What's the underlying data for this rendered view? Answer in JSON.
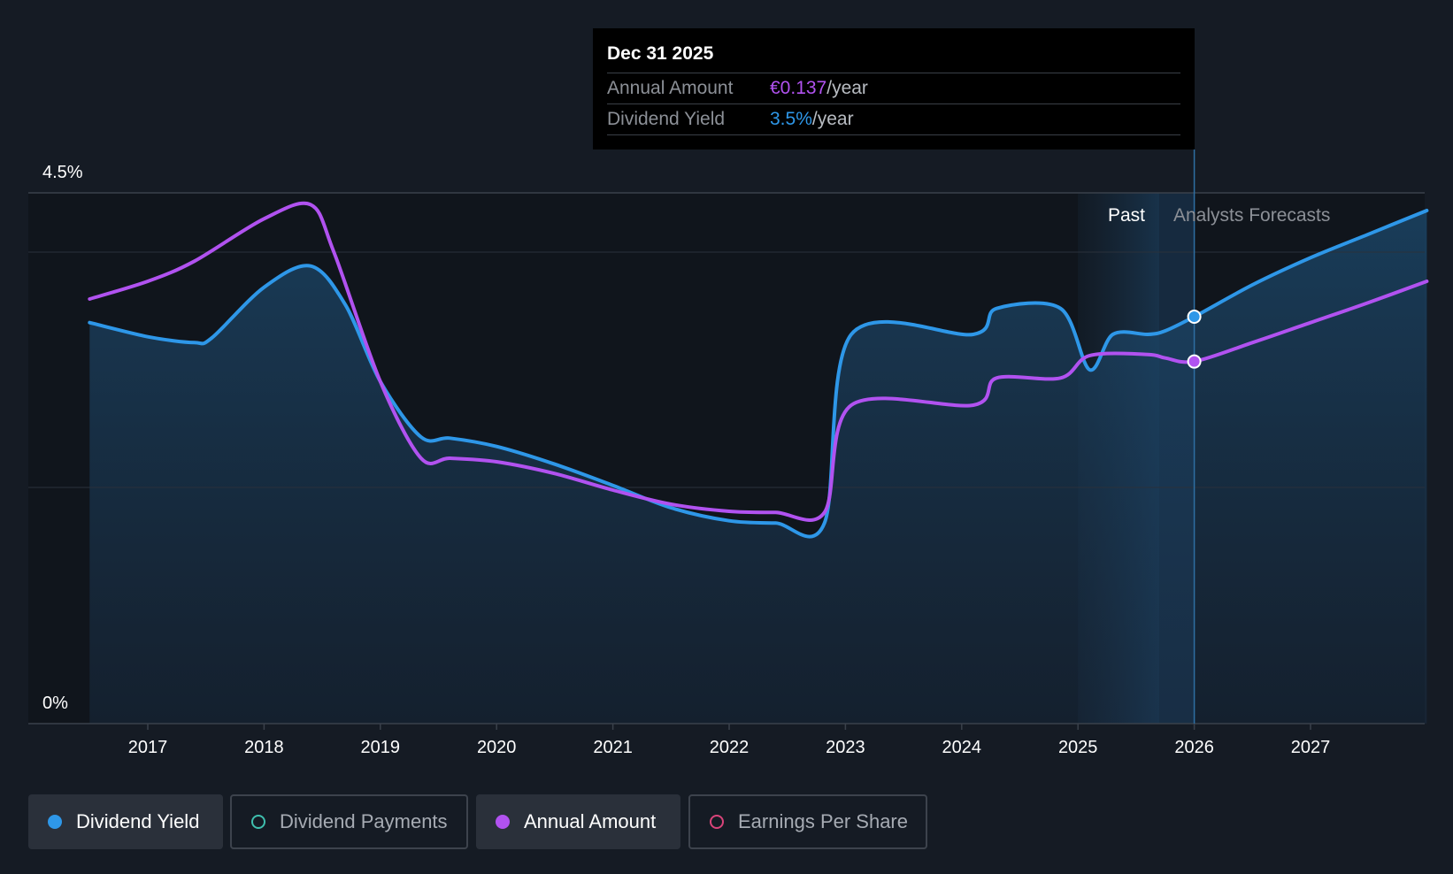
{
  "chart_data": {
    "type": "line",
    "y_axis": {
      "top_label": "4.5%",
      "bottom_label": "0%",
      "ylim": [
        0,
        4.5
      ]
    },
    "x_tick_labels": [
      "2017",
      "2018",
      "2019",
      "2020",
      "2021",
      "2022",
      "2023",
      "2024",
      "2025",
      "2026",
      "2027"
    ],
    "regions": {
      "past_label": "Past",
      "forecast_label": "Analysts Forecasts"
    },
    "series": [
      {
        "name": "Dividend Yield",
        "color": "#2e97e8",
        "points": [
          [
            2016.5,
            3.4
          ],
          [
            2017.0,
            3.28
          ],
          [
            2017.4,
            3.23
          ],
          [
            2017.55,
            3.27
          ],
          [
            2018.0,
            3.7
          ],
          [
            2018.4,
            3.88
          ],
          [
            2018.7,
            3.55
          ],
          [
            2019.0,
            2.9
          ],
          [
            2019.35,
            2.43
          ],
          [
            2019.6,
            2.42
          ],
          [
            2020.0,
            2.35
          ],
          [
            2020.5,
            2.2
          ],
          [
            2021.0,
            2.02
          ],
          [
            2021.5,
            1.83
          ],
          [
            2022.0,
            1.72
          ],
          [
            2022.4,
            1.7
          ],
          [
            2022.82,
            1.7
          ],
          [
            2023.05,
            3.3
          ],
          [
            2024.1,
            3.3
          ],
          [
            2024.3,
            3.52
          ],
          [
            2024.85,
            3.52
          ],
          [
            2025.1,
            3.0
          ],
          [
            2025.3,
            3.3
          ],
          [
            2025.6,
            3.3
          ],
          [
            2025.75,
            3.33
          ],
          [
            2026.0,
            3.45
          ],
          [
            2026.5,
            3.72
          ],
          [
            2027.0,
            3.95
          ],
          [
            2027.5,
            4.15
          ],
          [
            2028.0,
            4.35
          ]
        ]
      },
      {
        "name": "Annual Amount",
        "color": "#b152f0",
        "points": [
          [
            2016.5,
            3.6
          ],
          [
            2017.0,
            3.75
          ],
          [
            2017.4,
            3.92
          ],
          [
            2018.0,
            4.28
          ],
          [
            2018.4,
            4.4
          ],
          [
            2018.6,
            4.0
          ],
          [
            2019.0,
            2.9
          ],
          [
            2019.35,
            2.25
          ],
          [
            2019.6,
            2.25
          ],
          [
            2020.0,
            2.22
          ],
          [
            2020.5,
            2.12
          ],
          [
            2021.0,
            1.98
          ],
          [
            2021.5,
            1.86
          ],
          [
            2022.0,
            1.8
          ],
          [
            2022.4,
            1.79
          ],
          [
            2022.82,
            1.79
          ],
          [
            2023.05,
            2.7
          ],
          [
            2024.1,
            2.7
          ],
          [
            2024.3,
            2.93
          ],
          [
            2024.85,
            2.93
          ],
          [
            2025.1,
            3.12
          ],
          [
            2025.6,
            3.13
          ],
          [
            2025.75,
            3.1
          ],
          [
            2026.0,
            3.07
          ],
          [
            2026.5,
            3.23
          ],
          [
            2027.0,
            3.4
          ],
          [
            2027.5,
            3.57
          ],
          [
            2028.0,
            3.75
          ]
        ]
      }
    ],
    "highlight": {
      "x": 2026.0,
      "yield": 3.45,
      "amount": 3.07
    }
  },
  "tooltip": {
    "date": "Dec 31 2025",
    "annual_label": "Annual Amount",
    "annual_value": "€0.137",
    "annual_unit": "/year",
    "yield_label": "Dividend Yield",
    "yield_value": "3.5%",
    "yield_unit": "/year"
  },
  "legend": {
    "dividend_yield": "Dividend Yield",
    "dividend_payments": "Dividend Payments",
    "annual_amount": "Annual Amount",
    "earnings_per_share": "Earnings Per Share"
  },
  "colors": {
    "yield": "#2e97e8",
    "amount": "#b152f0",
    "payments": "#3fbfae",
    "eps": "#d9447a"
  }
}
